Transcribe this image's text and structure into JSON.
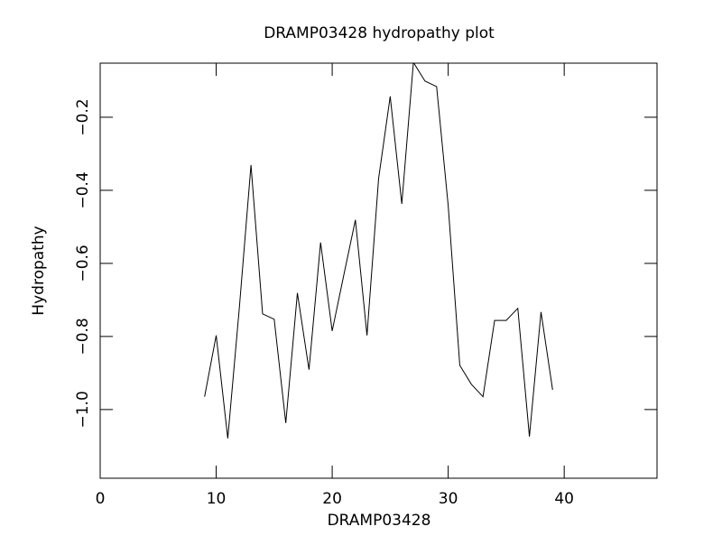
{
  "chart_data": {
    "type": "line",
    "title": "DRAMP03428 hydropathy plot",
    "x_label": "DRAMP03428",
    "y_label": "Hydropathy",
    "x": [
      9,
      10,
      11,
      12,
      13,
      14,
      15,
      16,
      17,
      18,
      19,
      20,
      21,
      22,
      23,
      24,
      25,
      26,
      27,
      28,
      29,
      30,
      31,
      32,
      33,
      34,
      35,
      36,
      37,
      38,
      39
    ],
    "series": [
      {
        "color": "#000000",
        "values": [
          -0.965,
          -0.797,
          -1.079,
          -0.72,
          -0.331,
          -0.738,
          -0.753,
          -1.037,
          -0.681,
          -0.891,
          -0.543,
          -0.785,
          -0.632,
          -0.481,
          -0.797,
          -0.368,
          -0.143,
          -0.437,
          -0.05,
          -0.101,
          -0.116,
          -0.442,
          -0.879,
          -0.931,
          -0.965,
          -0.756,
          -0.756,
          -0.723,
          -1.074,
          -0.733,
          -0.946
        ]
      }
    ],
    "xlim": [
      0,
      48
    ],
    "ylim": [
      -1.188,
      -0.052
    ],
    "xticks": [
      0,
      10,
      20,
      30,
      40
    ],
    "yticks": [
      {
        "value": -1.0,
        "label": "−1.0"
      },
      {
        "value": -0.8,
        "label": "−0.8"
      },
      {
        "value": -0.6,
        "label": "−0.6"
      },
      {
        "value": -0.4,
        "label": "−0.4"
      },
      {
        "value": -0.2,
        "label": "−0.2"
      }
    ]
  }
}
